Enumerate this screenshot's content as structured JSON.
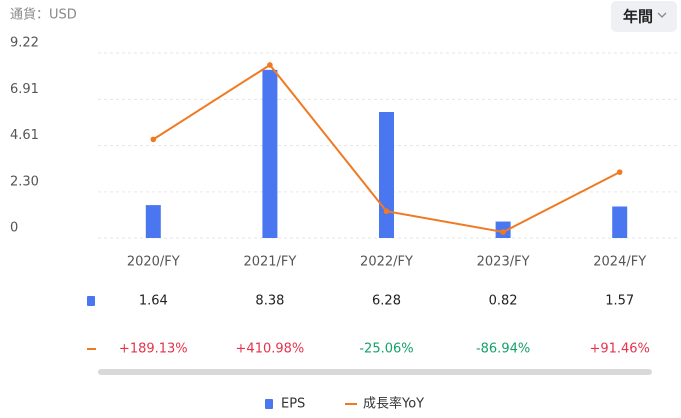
{
  "chart_data": {
    "type": "combo",
    "currency_label": "通貨：USD",
    "period_button": "年間",
    "categories": [
      "2020/FY",
      "2021/FY",
      "2022/FY",
      "2023/FY",
      "2024/FY"
    ],
    "series": [
      {
        "name": "EPS",
        "type": "bar",
        "color": "#4a77f0",
        "values": [
          1.64,
          8.38,
          6.28,
          0.82,
          1.57
        ]
      },
      {
        "name": "成長率YoY",
        "type": "line",
        "axis": "y2",
        "color": "#f07a22",
        "values": [
          189.13,
          410.98,
          -25.06,
          -86.94,
          91.46
        ],
        "value_labels": [
          "+189.13%",
          "+410.98%",
          "-25.06%",
          "-86.94%",
          "+91.46%"
        ]
      }
    ],
    "ylim": [
      0,
      9.22
    ],
    "yticks": [
      0,
      {
        "value": 2.3,
        "label": "2.30"
      },
      4.61,
      6.91,
      9.22
    ],
    "y2lim": [
      -104.8,
      446.7
    ],
    "grid": true,
    "legend": "bottom"
  }
}
